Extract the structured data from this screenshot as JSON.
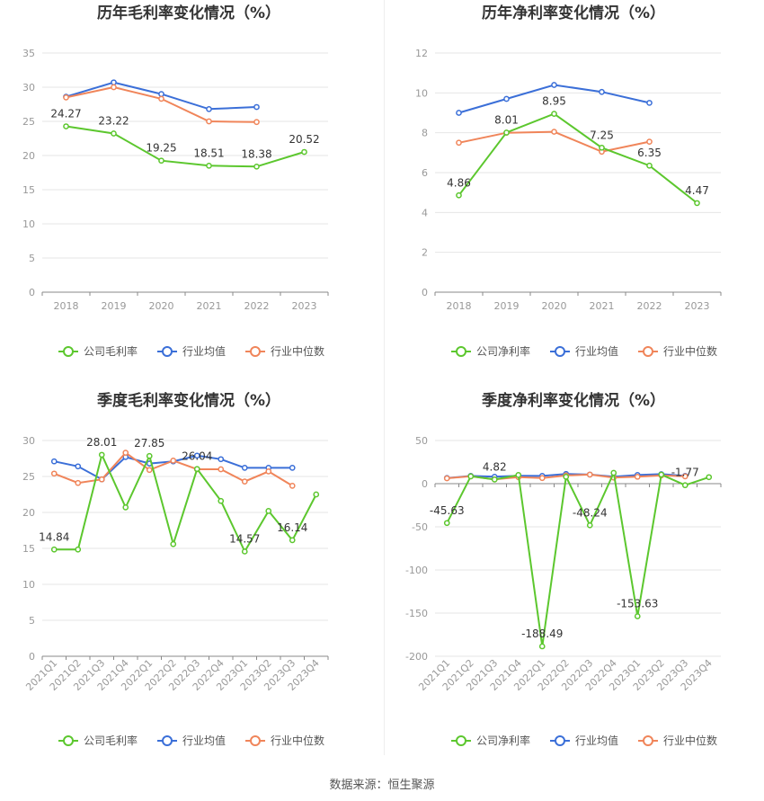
{
  "colors": {
    "company": "#5cc72e",
    "avg": "#3b6fd8",
    "median": "#f0855a",
    "grid": "#e6e6e6",
    "axis": "#999999"
  },
  "source_text": "数据来源：恒生聚源",
  "chart_data": [
    {
      "type": "line",
      "title": "历年毛利率变化情况（%）",
      "categories": [
        "2018",
        "2019",
        "2020",
        "2021",
        "2022",
        "2023"
      ],
      "ylim": [
        0,
        35
      ],
      "yticks": [
        0,
        5,
        10,
        15,
        20,
        25,
        30,
        35
      ],
      "x_rotate": false,
      "legend_position": "bottom",
      "series": [
        {
          "name": "公司毛利率",
          "color": "#5cc72e",
          "labels": true,
          "values": [
            24.27,
            23.22,
            19.25,
            18.51,
            18.38,
            20.52
          ],
          "label_text": [
            "24.27",
            "23.22",
            "19.25",
            "18.51",
            "18.38",
            "20.52"
          ]
        },
        {
          "name": "行业均值",
          "color": "#3b6fd8",
          "labels": false,
          "values": [
            28.6,
            30.7,
            29.0,
            26.8,
            27.1,
            null
          ]
        },
        {
          "name": "行业中位数",
          "color": "#f0855a",
          "labels": false,
          "values": [
            28.5,
            30.0,
            28.3,
            25.0,
            24.9,
            null
          ]
        }
      ]
    },
    {
      "type": "line",
      "title": "历年净利率变化情况（%）",
      "categories": [
        "2018",
        "2019",
        "2020",
        "2021",
        "2022",
        "2023"
      ],
      "ylim": [
        0,
        12
      ],
      "yticks": [
        0,
        2,
        4,
        6,
        8,
        10,
        12
      ],
      "x_rotate": false,
      "legend_position": "bottom",
      "series": [
        {
          "name": "公司净利率",
          "color": "#5cc72e",
          "labels": true,
          "values": [
            4.86,
            8.01,
            8.95,
            7.25,
            6.35,
            4.47
          ],
          "label_text": [
            "4.86",
            "8.01",
            "8.95",
            "7.25",
            "6.35",
            "4.47"
          ]
        },
        {
          "name": "行业均值",
          "color": "#3b6fd8",
          "labels": false,
          "values": [
            9.0,
            9.7,
            10.4,
            10.05,
            9.5,
            null
          ]
        },
        {
          "name": "行业中位数",
          "color": "#f0855a",
          "labels": false,
          "values": [
            7.5,
            8.0,
            8.05,
            7.05,
            7.55,
            null
          ]
        }
      ]
    },
    {
      "type": "line",
      "title": "季度毛利率变化情况（%）",
      "categories": [
        "2021Q1",
        "2021Q2",
        "2021Q3",
        "2021Q4",
        "2022Q1",
        "2022Q2",
        "2022Q3",
        "2022Q4",
        "2023Q1",
        "2023Q2",
        "2023Q3",
        "2023Q4"
      ],
      "ylim": [
        0,
        30
      ],
      "yticks": [
        0,
        5,
        10,
        15,
        20,
        25,
        30
      ],
      "x_rotate": true,
      "legend_position": "bottom",
      "series": [
        {
          "name": "公司毛利率",
          "color": "#5cc72e",
          "labels": true,
          "values": [
            14.84,
            14.84,
            28.01,
            20.7,
            27.85,
            15.6,
            26.04,
            21.6,
            14.57,
            20.2,
            16.14,
            22.5
          ],
          "label_text": [
            "14.84",
            null,
            "28.01",
            null,
            "27.85",
            null,
            "26.04",
            null,
            "14.57",
            null,
            "16.14",
            null
          ]
        },
        {
          "name": "行业均值",
          "color": "#3b6fd8",
          "labels": false,
          "values": [
            27.1,
            26.4,
            24.6,
            27.7,
            26.8,
            27.1,
            27.9,
            27.4,
            26.2,
            26.2,
            26.2,
            null
          ]
        },
        {
          "name": "行业中位数",
          "color": "#f0855a",
          "labels": false,
          "values": [
            25.4,
            24.1,
            24.6,
            28.3,
            25.9,
            27.2,
            26.0,
            26.0,
            24.3,
            25.7,
            23.7,
            null
          ]
        }
      ]
    },
    {
      "type": "line",
      "title": "季度净利率变化情况（%）",
      "categories": [
        "2021Q1",
        "2021Q2",
        "2021Q3",
        "2021Q4",
        "2022Q1",
        "2022Q2",
        "2022Q3",
        "2022Q4",
        "2023Q1",
        "2023Q2",
        "2023Q3",
        "2023Q4"
      ],
      "ylim": [
        -200,
        50
      ],
      "yticks": [
        -200,
        -150,
        -100,
        -50,
        0,
        50
      ],
      "x_rotate": true,
      "legend_position": "bottom",
      "series": [
        {
          "name": "公司净利率",
          "color": "#5cc72e",
          "labels": true,
          "values": [
            -45.63,
            8.5,
            4.82,
            10.0,
            -188.49,
            8.0,
            -48.24,
            12.5,
            -153.63,
            10.5,
            -1.77,
            7.5
          ],
          "label_text": [
            "-45.63",
            null,
            "4.82",
            null,
            "-188.49",
            null,
            "-48.24",
            null,
            "-153.63",
            null,
            "-1.77",
            null
          ]
        },
        {
          "name": "行业均值",
          "color": "#3b6fd8",
          "labels": false,
          "values": [
            6.5,
            9.0,
            8.0,
            9.2,
            9.0,
            11.2,
            10.5,
            8.0,
            10.0,
            11.0,
            9.0,
            null
          ]
        },
        {
          "name": "行业中位数",
          "color": "#f0855a",
          "labels": false,
          "values": [
            6.2,
            8.5,
            5.0,
            7.5,
            6.5,
            9.5,
            10.5,
            7.0,
            8.0,
            9.5,
            8.5,
            null
          ]
        }
      ]
    }
  ]
}
